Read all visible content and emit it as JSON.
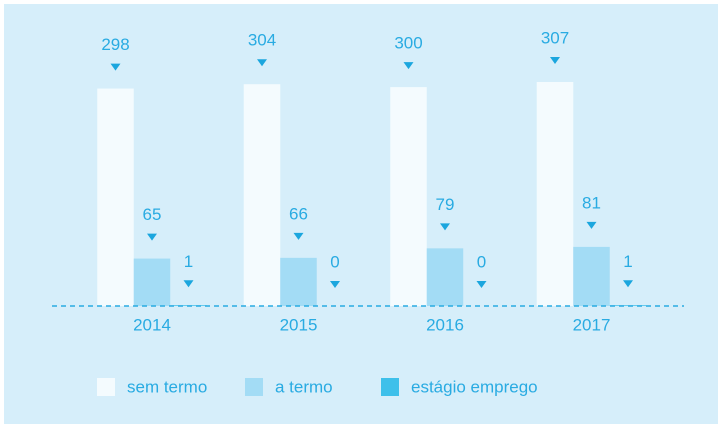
{
  "chart_data": {
    "type": "bar",
    "categories": [
      "2014",
      "2015",
      "2016",
      "2017"
    ],
    "series": [
      {
        "name": "sem termo",
        "color": "#f4fbfe",
        "values": [
          298,
          304,
          300,
          307
        ]
      },
      {
        "name": "a termo",
        "color": "#a3dcf5",
        "values": [
          65,
          66,
          79,
          81
        ]
      },
      {
        "name": "estágio emprego",
        "color": "#3ec0ea",
        "values": [
          1,
          0,
          0,
          1
        ]
      }
    ],
    "grid": false,
    "legend": "bottom"
  }
}
